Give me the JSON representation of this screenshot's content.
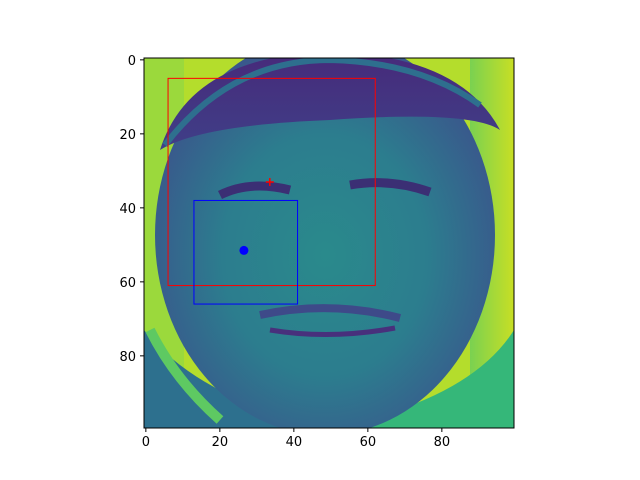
{
  "chart_data": {
    "type": "image",
    "title": "",
    "xlabel": "",
    "ylabel": "",
    "image_shape": [
      100,
      100
    ],
    "xlim": [
      -0.5,
      99.5
    ],
    "ylim": [
      99.5,
      -0.5
    ],
    "x_ticks": [
      0,
      20,
      40,
      60,
      80
    ],
    "y_ticks": [
      0,
      20,
      40,
      60,
      80
    ],
    "colormap": "viridis",
    "grid": false,
    "legend": "none",
    "overlays": [
      {
        "kind": "rectangle",
        "name": "red-box",
        "color": "#ff0000",
        "x0": 6,
        "y0": 5,
        "x1": 62,
        "y1": 61
      },
      {
        "kind": "rectangle",
        "name": "blue-box",
        "color": "#0000ff",
        "x0": 13,
        "y0": 38,
        "x1": 41,
        "y1": 66
      },
      {
        "kind": "marker",
        "name": "red-plus",
        "color": "#ff0000",
        "shape": "plus",
        "x": 33.5,
        "y": 33
      },
      {
        "kind": "marker",
        "name": "blue-dot",
        "color": "#0000ff",
        "shape": "circle",
        "x": 26.5,
        "y": 51.5
      }
    ]
  }
}
